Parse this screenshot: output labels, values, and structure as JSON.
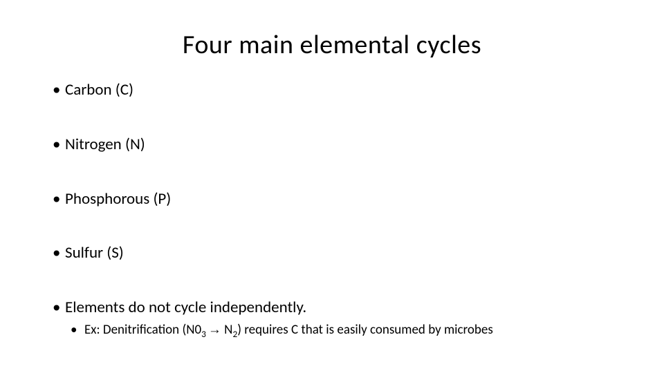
{
  "title": "Four main elemental cycles",
  "title_fontsize": 38,
  "background_color": "#ffffff",
  "text_color": "#000000",
  "bullets": {
    "level1_fontsize": 23,
    "level2_fontsize": 19,
    "items": [
      {
        "text": "Carbon (C)"
      },
      {
        "text": "Nitrogen (N)"
      },
      {
        "text": "Phosphorous (P)"
      },
      {
        "text": "Sulfur (S)"
      },
      {
        "text": "Elements do not cycle independently.",
        "sub": {
          "prefix": "Ex: Denitrification (N0",
          "sub1": "3 ",
          "arrow": "→",
          "mid": " N",
          "sub2": "2",
          "suffix": ") requires C that is easily consumed by microbes"
        }
      }
    ]
  }
}
